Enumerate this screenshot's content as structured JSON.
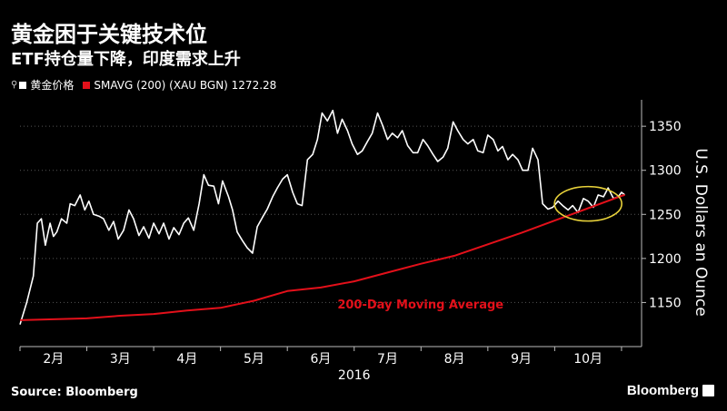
{
  "header": {
    "title": "黄金困于关键技术位",
    "subtitle": "ETF持仓量下降，印度需求上升"
  },
  "legend": {
    "series1": "黄金价格",
    "series2": "SMAVG (200) (XAU BGN) 1272.28"
  },
  "footer": {
    "source": "Source: Bloomberg",
    "brand": "Bloomberg"
  },
  "colors": {
    "background": "#000000",
    "price": "#ffffff",
    "smavg": "#e3101a",
    "highlight": "#e8d23a"
  },
  "chart_data": {
    "type": "line",
    "ylabel": "U.S. Dollars an Ounce",
    "xlabel": "2016",
    "ylim": [
      1100,
      1380
    ],
    "yticks": [
      1150,
      1200,
      1250,
      1300,
      1350
    ],
    "month_labels": [
      "2月",
      "3月",
      "4月",
      "5月",
      "6月",
      "7月",
      "8月",
      "9月",
      "10月"
    ],
    "month_positions": [
      1.5,
      2.5,
      3.5,
      4.5,
      5.5,
      6.5,
      7.5,
      8.5,
      9.5
    ],
    "annotation": "200-Day Moving Average",
    "x_range": [
      1.0,
      10.3
    ],
    "series": [
      {
        "name": "黄金价格",
        "color": "#ffffff",
        "x": [
          1.0,
          1.1,
          1.2,
          1.26,
          1.32,
          1.38,
          1.45,
          1.5,
          1.55,
          1.62,
          1.7,
          1.75,
          1.82,
          1.9,
          1.97,
          2.03,
          2.1,
          2.18,
          2.25,
          2.33,
          2.4,
          2.47,
          2.55,
          2.63,
          2.7,
          2.78,
          2.85,
          2.93,
          3.0,
          3.08,
          3.15,
          3.23,
          3.3,
          3.38,
          3.45,
          3.52,
          3.6,
          3.68,
          3.75,
          3.82,
          3.9,
          3.97,
          4.03,
          4.12,
          4.18,
          4.25,
          4.33,
          4.4,
          4.48,
          4.55,
          4.63,
          4.7,
          4.78,
          4.85,
          4.93,
          5.0,
          5.08,
          5.15,
          5.22,
          5.3,
          5.38,
          5.45,
          5.52,
          5.6,
          5.68,
          5.75,
          5.82,
          5.9,
          5.97,
          6.05,
          6.12,
          6.2,
          6.27,
          6.35,
          6.42,
          6.5,
          6.57,
          6.65,
          6.72,
          6.8,
          6.88,
          6.95,
          7.03,
          7.1,
          7.18,
          7.25,
          7.33,
          7.4,
          7.48,
          7.55,
          7.63,
          7.7,
          7.78,
          7.85,
          7.93,
          8.0,
          8.08,
          8.15,
          8.22,
          8.3,
          8.37,
          8.45,
          8.52,
          8.6,
          8.67,
          8.75,
          8.82,
          8.9,
          8.97,
          9.05,
          9.12,
          9.2,
          9.27,
          9.35,
          9.43,
          9.5,
          9.58,
          9.65,
          9.73,
          9.8,
          9.88,
          9.95,
          10.0,
          10.05
        ],
        "values": [
          1125,
          1150,
          1180,
          1240,
          1245,
          1215,
          1240,
          1225,
          1230,
          1245,
          1240,
          1262,
          1260,
          1272,
          1255,
          1265,
          1250,
          1248,
          1245,
          1232,
          1242,
          1222,
          1232,
          1255,
          1245,
          1226,
          1236,
          1223,
          1240,
          1228,
          1240,
          1222,
          1235,
          1227,
          1240,
          1246,
          1232,
          1262,
          1295,
          1283,
          1282,
          1262,
          1288,
          1270,
          1255,
          1230,
          1220,
          1212,
          1206,
          1236,
          1247,
          1256,
          1270,
          1280,
          1290,
          1295,
          1275,
          1262,
          1260,
          1312,
          1318,
          1335,
          1365,
          1356,
          1368,
          1342,
          1358,
          1345,
          1330,
          1318,
          1322,
          1333,
          1342,
          1365,
          1352,
          1335,
          1342,
          1337,
          1345,
          1328,
          1320,
          1320,
          1335,
          1328,
          1318,
          1310,
          1315,
          1325,
          1355,
          1345,
          1335,
          1330,
          1335,
          1322,
          1320,
          1340,
          1335,
          1322,
          1327,
          1312,
          1318,
          1312,
          1300,
          1300,
          1325,
          1312,
          1262,
          1256,
          1258,
          1265,
          1260,
          1255,
          1260,
          1252,
          1268,
          1265,
          1258,
          1272,
          1270,
          1280,
          1268,
          1270,
          1275,
          1272
        ]
      },
      {
        "name": "SMAVG (200) (XAU BGN) 1272.28",
        "color": "#e3101a",
        "x": [
          1.0,
          1.5,
          2.0,
          2.5,
          3.0,
          3.5,
          4.0,
          4.5,
          5.0,
          5.5,
          6.0,
          6.5,
          7.0,
          7.5,
          8.0,
          8.5,
          9.0,
          9.5,
          10.0,
          10.05
        ],
        "values": [
          1130,
          1131,
          1132,
          1135,
          1137,
          1141,
          1144,
          1152,
          1163,
          1167,
          1174,
          1184,
          1194,
          1203,
          1216,
          1229,
          1243,
          1257,
          1271,
          1272
        ]
      }
    ],
    "highlight_ellipse_center": [
      9.5,
      1262
    ]
  }
}
